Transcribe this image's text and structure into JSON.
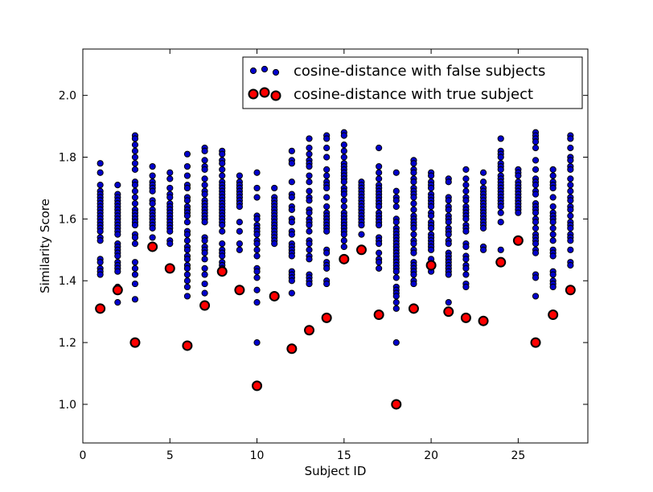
{
  "chart_data": {
    "type": "scatter",
    "title": "",
    "xlabel": "Subject ID",
    "ylabel": "Similarity Score",
    "xlim": [
      0,
      29
    ],
    "ylim": [
      0.875,
      2.15
    ],
    "xticks": [
      0,
      5,
      10,
      15,
      20,
      25
    ],
    "yticks": [
      1.0,
      1.2,
      1.4,
      1.6,
      1.8,
      2.0
    ],
    "grid": false,
    "legend_placement": "top-right",
    "series": [
      {
        "name": "cosine-distance with false subjects",
        "color": "#0000cc",
        "marker": "small-circle",
        "points": [
          {
            "x": 1,
            "y_values": [
              1.78,
              1.75,
              1.71,
              1.69,
              1.68,
              1.67,
              1.66,
              1.65,
              1.64,
              1.63,
              1.62,
              1.61,
              1.6,
              1.59,
              1.58,
              1.57,
              1.56,
              1.54,
              1.53,
              1.47,
              1.46,
              1.44,
              1.43,
              1.42
            ]
          },
          {
            "x": 2,
            "y_values": [
              1.71,
              1.68,
              1.67,
              1.66,
              1.65,
              1.64,
              1.63,
              1.62,
              1.61,
              1.6,
              1.59,
              1.58,
              1.57,
              1.56,
              1.55,
              1.52,
              1.51,
              1.5,
              1.49,
              1.48,
              1.46,
              1.45,
              1.44,
              1.43,
              1.38,
              1.33
            ]
          },
          {
            "x": 3,
            "y_values": [
              1.87,
              1.86,
              1.84,
              1.82,
              1.8,
              1.78,
              1.76,
              1.72,
              1.71,
              1.69,
              1.67,
              1.65,
              1.63,
              1.62,
              1.61,
              1.6,
              1.59,
              1.58,
              1.55,
              1.54,
              1.52,
              1.46,
              1.44,
              1.42,
              1.39,
              1.34
            ]
          },
          {
            "x": 4,
            "y_values": [
              1.77,
              1.74,
              1.72,
              1.71,
              1.7,
              1.69,
              1.66,
              1.65,
              1.63,
              1.62,
              1.61,
              1.6,
              1.59,
              1.58,
              1.57,
              1.54
            ]
          },
          {
            "x": 5,
            "y_values": [
              1.75,
              1.73,
              1.7,
              1.68,
              1.67,
              1.65,
              1.64,
              1.63,
              1.62,
              1.61,
              1.6,
              1.59,
              1.58,
              1.57,
              1.56,
              1.53,
              1.52
            ]
          },
          {
            "x": 6,
            "y_values": [
              1.81,
              1.77,
              1.74,
              1.71,
              1.7,
              1.67,
              1.66,
              1.64,
              1.63,
              1.62,
              1.61,
              1.59,
              1.56,
              1.55,
              1.53,
              1.51,
              1.5,
              1.48,
              1.47,
              1.45,
              1.44,
              1.42,
              1.4,
              1.38,
              1.35
            ]
          },
          {
            "x": 7,
            "y_values": [
              1.83,
              1.82,
              1.79,
              1.77,
              1.76,
              1.73,
              1.71,
              1.69,
              1.68,
              1.66,
              1.65,
              1.64,
              1.63,
              1.62,
              1.61,
              1.6,
              1.59,
              1.54,
              1.53,
              1.51,
              1.5,
              1.49,
              1.47,
              1.44,
              1.42,
              1.39,
              1.36
            ]
          },
          {
            "x": 8,
            "y_values": [
              1.82,
              1.81,
              1.79,
              1.78,
              1.76,
              1.74,
              1.72,
              1.71,
              1.7,
              1.69,
              1.68,
              1.67,
              1.66,
              1.65,
              1.64,
              1.63,
              1.62,
              1.61,
              1.6,
              1.59,
              1.58,
              1.56,
              1.52,
              1.5,
              1.49,
              1.48,
              1.46,
              1.45,
              1.44
            ]
          },
          {
            "x": 9,
            "y_values": [
              1.74,
              1.72,
              1.71,
              1.7,
              1.69,
              1.68,
              1.67,
              1.66,
              1.65,
              1.64,
              1.59,
              1.56,
              1.52,
              1.5
            ]
          },
          {
            "x": 10,
            "y_values": [
              1.75,
              1.7,
              1.67,
              1.61,
              1.6,
              1.58,
              1.57,
              1.56,
              1.55,
              1.53,
              1.52,
              1.5,
              1.48,
              1.44,
              1.43,
              1.41,
              1.37,
              1.33,
              1.2
            ]
          },
          {
            "x": 11,
            "y_values": [
              1.7,
              1.67,
              1.66,
              1.65,
              1.64,
              1.63,
              1.62,
              1.61,
              1.6,
              1.59,
              1.58,
              1.57,
              1.56,
              1.55,
              1.54,
              1.53,
              1.52
            ]
          },
          {
            "x": 12,
            "y_values": [
              1.82,
              1.79,
              1.78,
              1.72,
              1.68,
              1.67,
              1.64,
              1.63,
              1.6,
              1.59,
              1.56,
              1.55,
              1.52,
              1.51,
              1.5,
              1.49,
              1.48,
              1.43,
              1.42,
              1.41,
              1.4,
              1.36
            ]
          },
          {
            "x": 13,
            "y_values": [
              1.86,
              1.83,
              1.81,
              1.79,
              1.78,
              1.77,
              1.74,
              1.72,
              1.69,
              1.67,
              1.66,
              1.63,
              1.62,
              1.6,
              1.59,
              1.58,
              1.56,
              1.53,
              1.52,
              1.5,
              1.48,
              1.47,
              1.42,
              1.41,
              1.4,
              1.39
            ]
          },
          {
            "x": 14,
            "y_values": [
              1.87,
              1.86,
              1.83,
              1.8,
              1.76,
              1.74,
              1.72,
              1.71,
              1.7,
              1.67,
              1.64,
              1.62,
              1.61,
              1.6,
              1.59,
              1.58,
              1.57,
              1.56,
              1.5,
              1.49,
              1.46,
              1.45,
              1.44,
              1.4,
              1.39
            ]
          },
          {
            "x": 15,
            "y_values": [
              1.88,
              1.87,
              1.84,
              1.82,
              1.8,
              1.78,
              1.77,
              1.76,
              1.75,
              1.74,
              1.73,
              1.72,
              1.7,
              1.69,
              1.68,
              1.66,
              1.64,
              1.62,
              1.61,
              1.6,
              1.59,
              1.58,
              1.57,
              1.56,
              1.55,
              1.53,
              1.51
            ]
          },
          {
            "x": 16,
            "y_values": [
              1.72,
              1.71,
              1.7,
              1.69,
              1.68,
              1.67,
              1.66,
              1.65,
              1.64,
              1.63,
              1.62,
              1.61,
              1.6,
              1.59,
              1.58,
              1.55
            ]
          },
          {
            "x": 17,
            "y_values": [
              1.83,
              1.77,
              1.75,
              1.73,
              1.71,
              1.7,
              1.69,
              1.68,
              1.67,
              1.66,
              1.65,
              1.64,
              1.62,
              1.61,
              1.6,
              1.59,
              1.58,
              1.54,
              1.53,
              1.52,
              1.49,
              1.47,
              1.46,
              1.44
            ]
          },
          {
            "x": 18,
            "y_values": [
              1.75,
              1.69,
              1.67,
              1.66,
              1.64,
              1.6,
              1.59,
              1.57,
              1.56,
              1.55,
              1.54,
              1.53,
              1.52,
              1.51,
              1.5,
              1.49,
              1.48,
              1.47,
              1.46,
              1.45,
              1.44,
              1.43,
              1.41,
              1.38,
              1.37,
              1.36,
              1.35,
              1.33,
              1.31,
              1.2
            ]
          },
          {
            "x": 19,
            "y_values": [
              1.79,
              1.78,
              1.76,
              1.75,
              1.73,
              1.72,
              1.7,
              1.69,
              1.68,
              1.67,
              1.65,
              1.63,
              1.61,
              1.6,
              1.59,
              1.58,
              1.57,
              1.55,
              1.53,
              1.52,
              1.5,
              1.49,
              1.46,
              1.45,
              1.44,
              1.43,
              1.42,
              1.4,
              1.39
            ]
          },
          {
            "x": 20,
            "y_values": [
              1.75,
              1.74,
              1.72,
              1.71,
              1.7,
              1.68,
              1.67,
              1.66,
              1.65,
              1.64,
              1.62,
              1.61,
              1.59,
              1.58,
              1.57,
              1.55,
              1.54,
              1.53,
              1.52,
              1.51,
              1.5,
              1.47,
              1.45,
              1.43
            ]
          },
          {
            "x": 21,
            "y_values": [
              1.73,
              1.72,
              1.67,
              1.66,
              1.64,
              1.63,
              1.61,
              1.6,
              1.59,
              1.57,
              1.56,
              1.55,
              1.53,
              1.52,
              1.49,
              1.48,
              1.47,
              1.46,
              1.45,
              1.44,
              1.43,
              1.42,
              1.33
            ]
          },
          {
            "x": 22,
            "y_values": [
              1.76,
              1.73,
              1.71,
              1.69,
              1.67,
              1.66,
              1.64,
              1.63,
              1.62,
              1.61,
              1.6,
              1.58,
              1.57,
              1.56,
              1.52,
              1.51,
              1.48,
              1.47,
              1.45,
              1.44,
              1.42,
              1.39,
              1.38
            ]
          },
          {
            "x": 23,
            "y_values": [
              1.75,
              1.72,
              1.7,
              1.69,
              1.68,
              1.67,
              1.66,
              1.65,
              1.64,
              1.63,
              1.62,
              1.61,
              1.6,
              1.59,
              1.58,
              1.57,
              1.51,
              1.5
            ]
          },
          {
            "x": 24,
            "y_values": [
              1.86,
              1.82,
              1.81,
              1.8,
              1.78,
              1.77,
              1.76,
              1.74,
              1.73,
              1.72,
              1.71,
              1.7,
              1.69,
              1.68,
              1.67,
              1.66,
              1.65,
              1.64,
              1.62,
              1.59,
              1.5
            ]
          },
          {
            "x": 25,
            "y_values": [
              1.76,
              1.75,
              1.74,
              1.72,
              1.71,
              1.7,
              1.69,
              1.68,
              1.67,
              1.66,
              1.65,
              1.64,
              1.63,
              1.62
            ]
          },
          {
            "x": 26,
            "y_values": [
              1.88,
              1.87,
              1.86,
              1.85,
              1.83,
              1.79,
              1.76,
              1.73,
              1.72,
              1.71,
              1.69,
              1.68,
              1.65,
              1.64,
              1.63,
              1.62,
              1.6,
              1.59,
              1.57,
              1.55,
              1.54,
              1.53,
              1.52,
              1.5,
              1.49,
              1.42,
              1.41,
              1.35
            ]
          },
          {
            "x": 27,
            "y_values": [
              1.76,
              1.74,
              1.72,
              1.71,
              1.7,
              1.67,
              1.64,
              1.62,
              1.61,
              1.6,
              1.59,
              1.57,
              1.55,
              1.53,
              1.5,
              1.49,
              1.48,
              1.43,
              1.42,
              1.4,
              1.39,
              1.38
            ]
          },
          {
            "x": 28,
            "y_values": [
              1.87,
              1.86,
              1.83,
              1.8,
              1.79,
              1.77,
              1.76,
              1.73,
              1.71,
              1.69,
              1.67,
              1.66,
              1.64,
              1.63,
              1.61,
              1.59,
              1.58,
              1.57,
              1.55,
              1.54,
              1.53,
              1.5,
              1.46,
              1.45
            ]
          }
        ]
      },
      {
        "name": "cosine-distance with true subject",
        "color": "#ff0000",
        "marker": "large-circle",
        "x": [
          1,
          2,
          3,
          4,
          5,
          6,
          7,
          8,
          9,
          10,
          11,
          12,
          13,
          14,
          15,
          16,
          17,
          18,
          19,
          20,
          21,
          22,
          23,
          24,
          25,
          26,
          27,
          28
        ],
        "y": [
          1.31,
          1.37,
          1.2,
          1.51,
          1.44,
          1.19,
          1.32,
          1.43,
          1.37,
          1.06,
          1.35,
          1.18,
          1.24,
          1.28,
          1.47,
          1.5,
          1.29,
          1.0,
          1.31,
          1.45,
          1.3,
          1.28,
          1.27,
          1.46,
          1.53,
          1.2,
          1.29,
          1.37
        ]
      }
    ]
  }
}
